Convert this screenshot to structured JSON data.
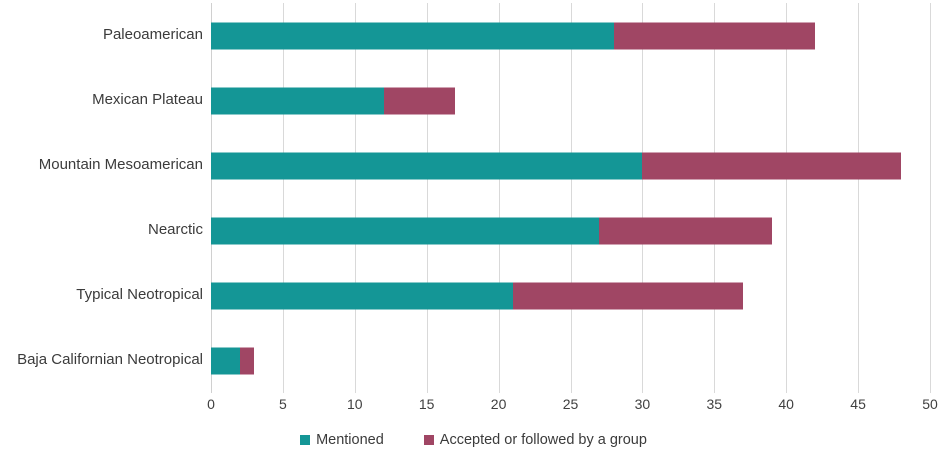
{
  "chart_data": {
    "type": "bar",
    "orientation": "horizontal",
    "stacked": true,
    "title": "",
    "xlabel": "",
    "ylabel": "",
    "categories": [
      "Paleoamerican",
      "Mexican Plateau",
      "Mountain Mesoamerican",
      "Nearctic",
      "Typical Neotropical",
      "Baja Californian Neotropical"
    ],
    "series": [
      {
        "name": "Mentioned",
        "color": "#149696",
        "values": [
          28,
          12,
          30,
          27,
          21,
          2
        ]
      },
      {
        "name": "Accepted or followed by a group",
        "color": "#a04664",
        "values": [
          14,
          5,
          18,
          12,
          16,
          1
        ]
      }
    ],
    "totals": [
      42,
      17,
      48,
      39,
      37,
      3
    ],
    "xlim": [
      0,
      50
    ],
    "xticks": [
      0,
      5,
      10,
      15,
      20,
      25,
      30,
      35,
      40,
      45,
      50
    ],
    "grid": true,
    "gridline_color": "#d9d9d9",
    "legend_position": "bottom"
  },
  "colors": {
    "background": "#ffffff",
    "text": "#3b3b3b",
    "axis_text": "#404040"
  }
}
